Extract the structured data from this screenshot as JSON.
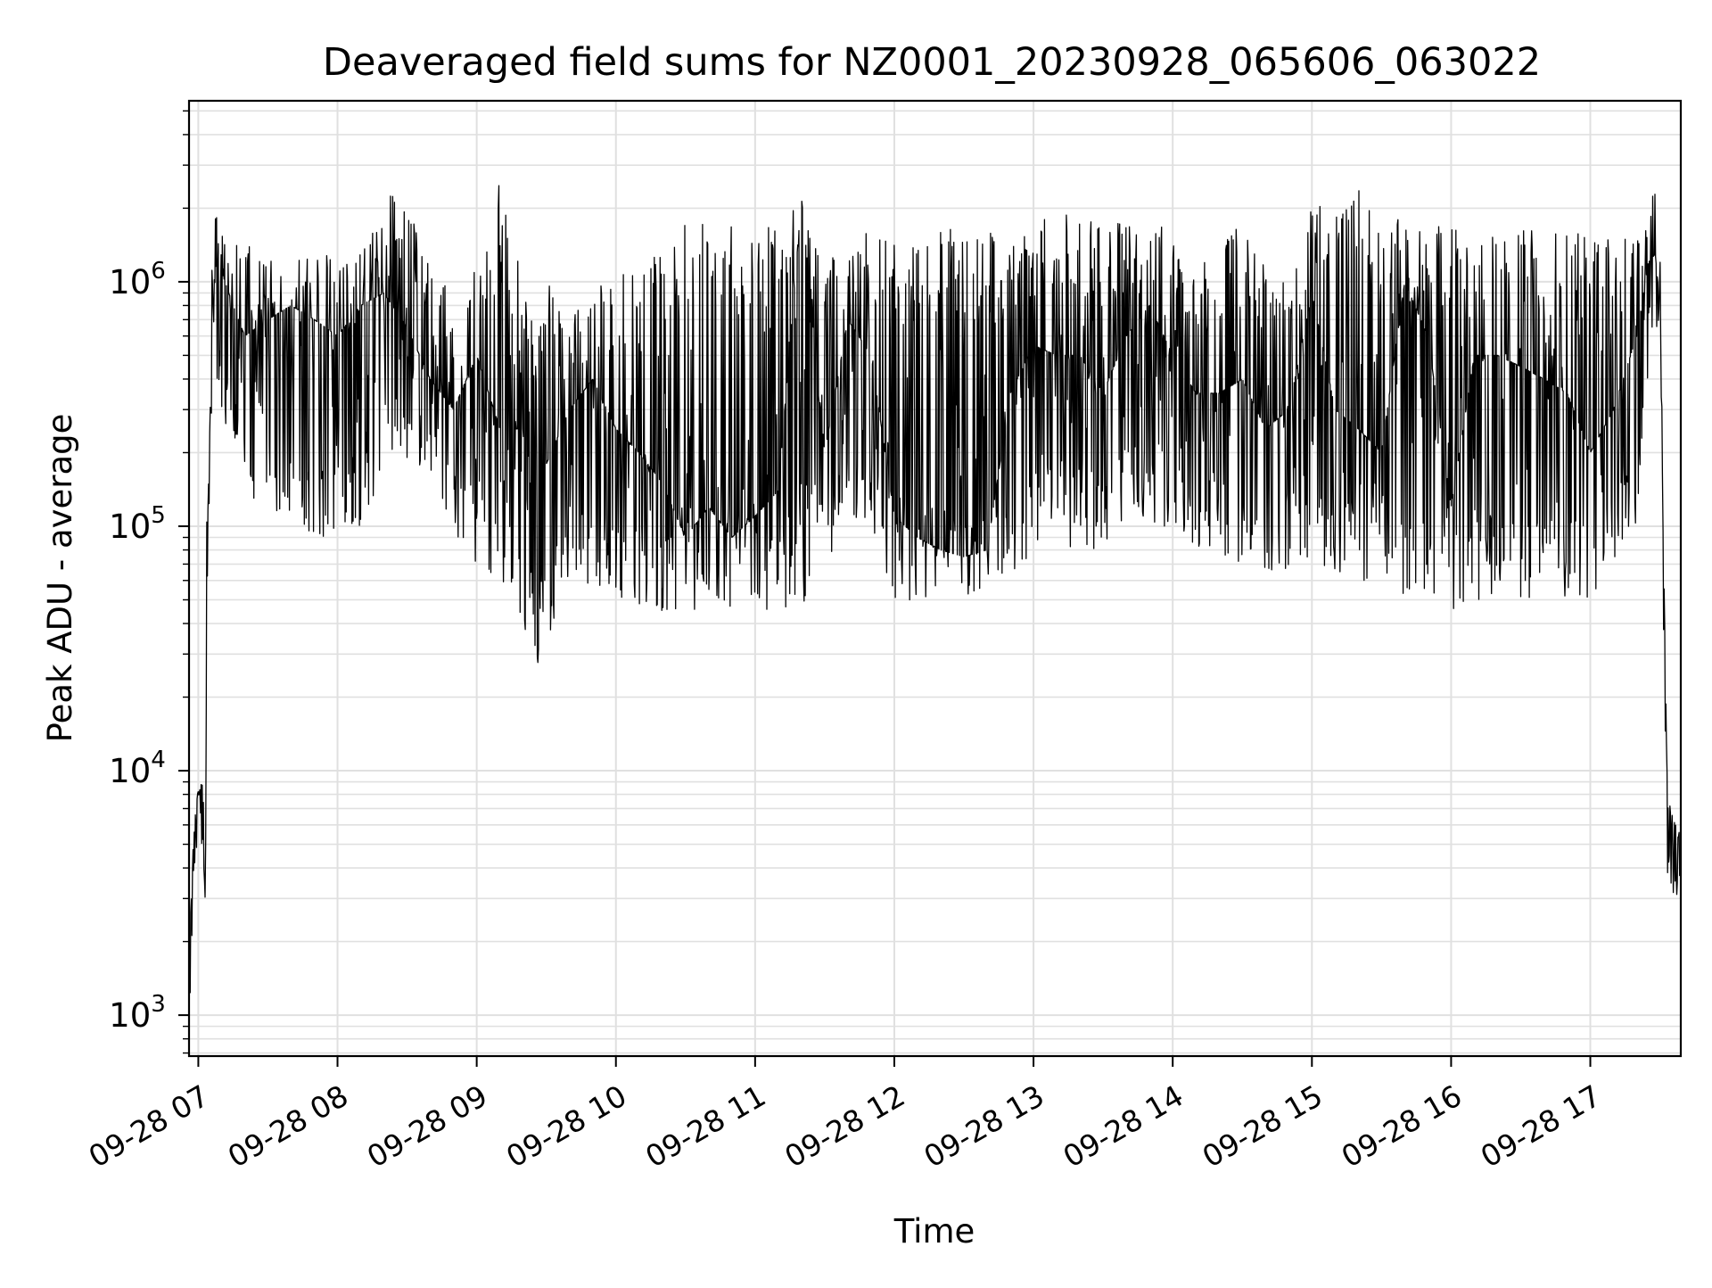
{
  "chart_data": {
    "type": "line",
    "title": "Deaveraged field sums for NZ0001_20230928_065606_063022",
    "xlabel": "Time",
    "ylabel": "Peak ADU - average",
    "yscale": "log",
    "ylim": [
      680,
      5500000
    ],
    "xlim": [
      "2023-09-28 06:56",
      "2023-09-28 17:39"
    ],
    "grid": true,
    "line_color": "#000000",
    "grid_color": "#e0e0e0",
    "x_ticks": [
      "09-28 07",
      "09-28 08",
      "09-28 09",
      "09-28 10",
      "09-28 11",
      "09-28 12",
      "09-28 13",
      "09-28 14",
      "09-28 15",
      "09-28 16",
      "09-28 17"
    ],
    "y_ticks": [
      {
        "base": "10",
        "exp": "3",
        "value": 1000
      },
      {
        "base": "10",
        "exp": "4",
        "value": 10000
      },
      {
        "base": "10",
        "exp": "5",
        "value": 100000
      },
      {
        "base": "10",
        "exp": "6",
        "value": 1000000
      }
    ],
    "series": [
      {
        "x": [
          "2023-09-28 06:56",
          "2023-09-28 06:57",
          "2023-09-28 06:58",
          "2023-09-28 06:59",
          "2023-09-28 07:00",
          "2023-09-28 07:02",
          "2023-09-28 07:03",
          "2023-09-28 07:04",
          "2023-09-28 07:06",
          "2023-09-28 07:08",
          "2023-09-28 07:10",
          "2023-09-28 07:15",
          "2023-09-28 07:20",
          "2023-09-28 07:30",
          "2023-09-28 07:40",
          "2023-09-28 07:50",
          "2023-09-28 08:00",
          "2023-09-28 08:10",
          "2023-09-28 08:20",
          "2023-09-28 08:30",
          "2023-09-28 08:40",
          "2023-09-28 08:50",
          "2023-09-28 09:00",
          "2023-09-28 09:10",
          "2023-09-28 09:20",
          "2023-09-28 09:26",
          "2023-09-28 09:30",
          "2023-09-28 09:40",
          "2023-09-28 09:50",
          "2023-09-28 10:00",
          "2023-09-28 10:10",
          "2023-09-28 10:20",
          "2023-09-28 10:30",
          "2023-09-28 10:40",
          "2023-09-28 10:50",
          "2023-09-28 11:00",
          "2023-09-28 11:10",
          "2023-09-28 11:20",
          "2023-09-28 11:30",
          "2023-09-28 11:40",
          "2023-09-28 11:50",
          "2023-09-28 12:00",
          "2023-09-28 12:10",
          "2023-09-28 12:20",
          "2023-09-28 12:30",
          "2023-09-28 12:40",
          "2023-09-28 12:50",
          "2023-09-28 13:00",
          "2023-09-28 13:10",
          "2023-09-28 13:20",
          "2023-09-28 13:30",
          "2023-09-28 13:40",
          "2023-09-28 13:50",
          "2023-09-28 14:00",
          "2023-09-28 14:10",
          "2023-09-28 14:20",
          "2023-09-28 14:30",
          "2023-09-28 14:40",
          "2023-09-28 14:50",
          "2023-09-28 15:00",
          "2023-09-28 15:10",
          "2023-09-28 15:20",
          "2023-09-28 15:30",
          "2023-09-28 15:40",
          "2023-09-28 15:50",
          "2023-09-28 16:00",
          "2023-09-28 16:10",
          "2023-09-28 16:20",
          "2023-09-28 16:30",
          "2023-09-28 16:40",
          "2023-09-28 16:50",
          "2023-09-28 17:00",
          "2023-09-28 17:10",
          "2023-09-28 17:20",
          "2023-09-28 17:25",
          "2023-09-28 17:28",
          "2023-09-28 17:30",
          "2023-09-28 17:33",
          "2023-09-28 17:35",
          "2023-09-28 17:37",
          "2023-09-28 17:39"
        ],
        "y": [
          1500,
          3200,
          5500,
          6000,
          7800,
          9500,
          2800,
          100000,
          700000,
          1300000,
          1100000,
          800000,
          600000,
          700000,
          800000,
          700000,
          600000,
          800000,
          900000,
          650000,
          400000,
          300000,
          500000,
          250000,
          250000,
          23000,
          180000,
          300000,
          400000,
          250000,
          200000,
          150000,
          90000,
          120000,
          90000,
          110000,
          140000,
          2200000,
          200000,
          700000,
          500000,
          110000,
          90000,
          80000,
          75000,
          80000,
          350000,
          550000,
          500000,
          500000,
          350000,
          600000,
          800000,
          500000,
          350000,
          350000,
          400000,
          250000,
          300000,
          900000,
          300000,
          250000,
          200000,
          1000000,
          600000,
          120000,
          500000,
          500000,
          450000,
          400000,
          350000,
          200000,
          300000,
          600000,
          1200000,
          1300000,
          800000,
          10000,
          6000,
          3000,
          4000
        ],
        "min": [
          800,
          1500,
          3500,
          4000,
          4500,
          5000,
          2800,
          80000,
          300000,
          400000,
          300000,
          200000,
          150000,
          100000,
          100000,
          90000,
          90000,
          100000,
          150000,
          150000,
          150000,
          100000,
          60000,
          60000,
          40000,
          23000,
          35000,
          50000,
          60000,
          50000,
          45000,
          45000,
          45000,
          45000,
          45000,
          45000,
          45000,
          45000,
          70000,
          100000,
          100000,
          50000,
          50000,
          50000,
          50000,
          50000,
          60000,
          80000,
          80000,
          80000,
          80000,
          100000,
          100000,
          100000,
          80000,
          80000,
          60000,
          60000,
          60000,
          70000,
          60000,
          60000,
          60000,
          50000,
          50000,
          45000,
          50000,
          50000,
          50000,
          50000,
          50000,
          50000,
          70000,
          100000,
          400000,
          500000,
          350000,
          4000,
          3000,
          2800,
          3800
        ],
        "max": [
          1500,
          3500,
          6000,
          7000,
          9500,
          9500,
          4000,
          600000,
          1500000,
          2200000,
          1600000,
          1500000,
          1500000,
          1400000,
          1300000,
          1300000,
          1400000,
          1300000,
          2300000,
          2300000,
          1100000,
          900000,
          1200000,
          2600000,
          1200000,
          800000,
          1000000,
          900000,
          900000,
          1100000,
          1100000,
          1500000,
          1800000,
          1700000,
          1800000,
          1600000,
          1800000,
          2200000,
          1400000,
          1200000,
          1700000,
          1500000,
          1600000,
          1700000,
          1600000,
          1600000,
          1500000,
          1700000,
          2100000,
          1900000,
          1700000,
          1800000,
          1900000,
          1500000,
          1300000,
          1300000,
          1900000,
          1300000,
          1300000,
          2200000,
          2000000,
          2400000,
          1600000,
          2200000,
          1800000,
          1700000,
          1600000,
          1600000,
          1700000,
          1600000,
          1700000,
          1500000,
          1500000,
          1500000,
          2000000,
          3500000,
          1600000,
          8000,
          8000,
          7000,
          6000
        ]
      }
    ]
  }
}
